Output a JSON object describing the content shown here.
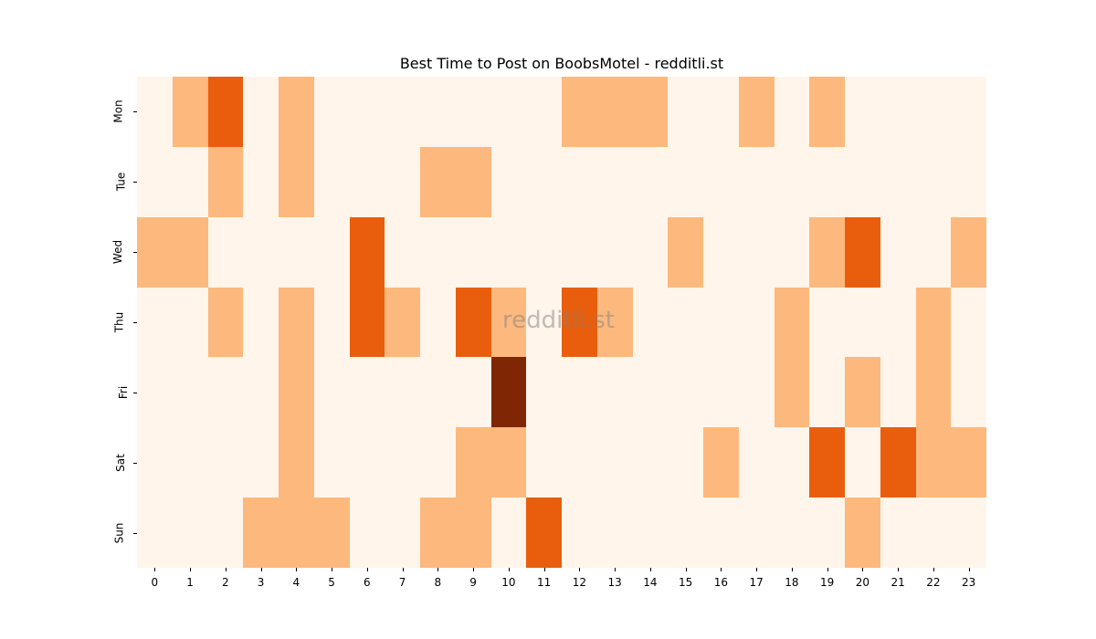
{
  "chart_data": {
    "type": "heatmap",
    "title": "Best Time to Post on BoobsMotel - redditli.st",
    "xlabel": "",
    "ylabel": "",
    "x": [
      "0",
      "1",
      "2",
      "3",
      "4",
      "5",
      "6",
      "7",
      "8",
      "9",
      "10",
      "11",
      "12",
      "13",
      "14",
      "15",
      "16",
      "17",
      "18",
      "19",
      "20",
      "21",
      "22",
      "23"
    ],
    "y": [
      "Mon",
      "Tue",
      "Wed",
      "Thu",
      "Fri",
      "Sat",
      "Sun"
    ],
    "values": [
      [
        0,
        1,
        2,
        0,
        1,
        0,
        0,
        0,
        0,
        0,
        0,
        0,
        1,
        1,
        1,
        0,
        0,
        1,
        0,
        1,
        0,
        0,
        0,
        0
      ],
      [
        0,
        0,
        1,
        0,
        1,
        0,
        0,
        0,
        1,
        1,
        0,
        0,
        0,
        0,
        0,
        0,
        0,
        0,
        0,
        0,
        0,
        0,
        0,
        0
      ],
      [
        1,
        1,
        0,
        0,
        0,
        0,
        2,
        0,
        0,
        0,
        0,
        0,
        0,
        0,
        0,
        1,
        0,
        0,
        0,
        1,
        2,
        0,
        0,
        1
      ],
      [
        0,
        0,
        1,
        0,
        1,
        0,
        2,
        1,
        0,
        2,
        1,
        0,
        2,
        1,
        0,
        0,
        0,
        0,
        1,
        0,
        0,
        0,
        1,
        0
      ],
      [
        0,
        0,
        0,
        0,
        1,
        0,
        0,
        0,
        0,
        0,
        3,
        0,
        0,
        0,
        0,
        0,
        0,
        0,
        1,
        0,
        1,
        0,
        1,
        0
      ],
      [
        0,
        0,
        0,
        0,
        1,
        0,
        0,
        0,
        0,
        1,
        1,
        0,
        0,
        0,
        0,
        0,
        1,
        0,
        0,
        2,
        0,
        2,
        1,
        1
      ],
      [
        0,
        0,
        0,
        1,
        1,
        1,
        0,
        0,
        1,
        1,
        0,
        2,
        0,
        0,
        0,
        0,
        0,
        0,
        0,
        0,
        1,
        0,
        0,
        0
      ]
    ],
    "colormap": "Oranges",
    "level_colors": [
      "#fff5eb",
      "#fdb97d",
      "#e95e0d",
      "#7f2704"
    ],
    "grid": false,
    "legend": "none",
    "watermark": "redditli.st"
  }
}
